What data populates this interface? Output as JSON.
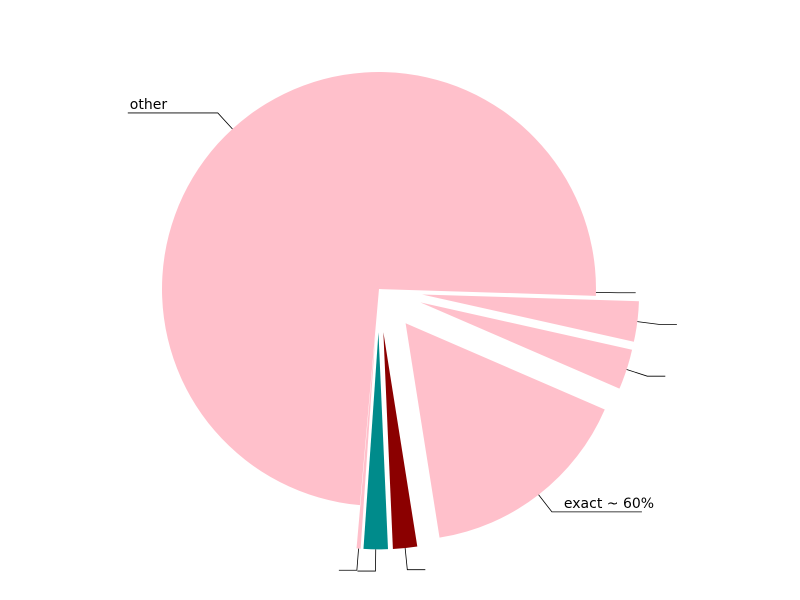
{
  "chart_data": {
    "type": "pie",
    "title": "",
    "start_angle_deg": 0,
    "direction": "clockwise",
    "slices": [
      {
        "label": "",
        "value": 0.5,
        "color": "#ffc0cb",
        "exploded": false
      },
      {
        "label": "",
        "value": 3.0,
        "color": "#ffc0cb",
        "exploded": true
      },
      {
        "label": "",
        "value": 3.0,
        "color": "#ffc0cb",
        "exploded": true
      },
      {
        "label": "exact ~ 60%",
        "value": 16.0,
        "color": "#ffc0cb",
        "exploded": true
      },
      {
        "label": "",
        "value": 1.8,
        "color": "#8b0000",
        "exploded": true
      },
      {
        "label": "",
        "value": 1.8,
        "color": "#008b8b",
        "exploded": true
      },
      {
        "label": "",
        "value": 0.3,
        "color": "#ffc0cb",
        "exploded": true
      },
      {
        "label": "other",
        "value": 73.6,
        "color": "#ffc0cb",
        "exploded": false
      }
    ],
    "leader_color": "#000000"
  }
}
